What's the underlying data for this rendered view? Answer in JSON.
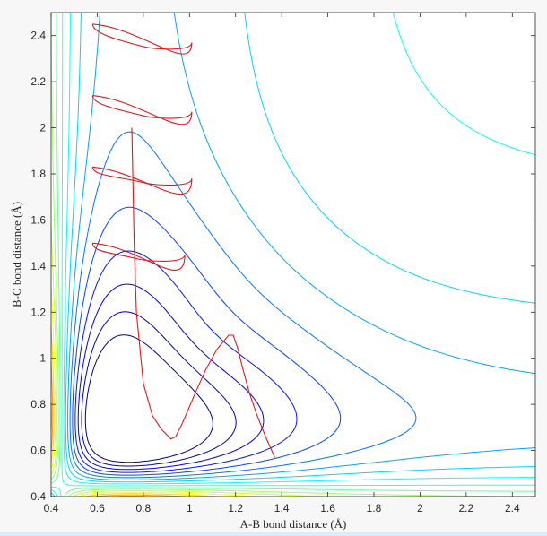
{
  "chart_data": {
    "type": "contour",
    "title": "",
    "xlabel": "A-B bond distance (Å)",
    "ylabel": "B-C bond distance (Å)",
    "xlim": [
      0.4,
      2.5
    ],
    "ylim": [
      0.4,
      2.5
    ],
    "x_ticks": [
      "0.4",
      "0.6",
      "0.8",
      "1",
      "1.2",
      "1.4",
      "1.6",
      "1.8",
      "2",
      "2.2",
      "2.4"
    ],
    "y_ticks": [
      "0.4",
      "0.6",
      "0.8",
      "1",
      "1.2",
      "1.4",
      "1.6",
      "1.8",
      "2",
      "2.2",
      "2.4"
    ],
    "grid": false,
    "legend": "none",
    "colormap": "jet",
    "contour_levels": 22,
    "trajectory": {
      "color": "#e8151b",
      "points": [
        [
          1.37,
          0.57
        ],
        [
          1.33,
          0.66
        ],
        [
          1.29,
          0.76
        ],
        [
          1.26,
          0.85
        ],
        [
          1.23,
          0.96
        ],
        [
          1.21,
          1.04
        ],
        [
          1.19,
          1.1
        ],
        [
          1.17,
          1.1
        ],
        [
          1.12,
          1.04
        ],
        [
          1.07,
          0.95
        ],
        [
          1.03,
          0.86
        ],
        [
          1.0,
          0.79
        ],
        [
          0.97,
          0.72
        ],
        [
          0.94,
          0.66
        ],
        [
          0.92,
          0.65
        ],
        [
          0.88,
          0.69
        ],
        [
          0.84,
          0.75
        ],
        [
          0.8,
          0.89
        ],
        [
          0.77,
          1.2
        ],
        [
          0.76,
          1.5
        ],
        [
          0.75,
          2.0
        ]
      ]
    },
    "trajectory_loops": [
      {
        "y_low": 1.43,
        "y_high": 1.5,
        "x_right": 0.98
      },
      {
        "y_low": 1.76,
        "y_high": 1.83,
        "x_right": 1.01
      },
      {
        "y_low": 2.05,
        "y_high": 2.14,
        "x_right": 1.01
      },
      {
        "y_low": 2.35,
        "y_high": 2.45,
        "x_right": 1.01
      }
    ],
    "colors": {
      "axes_bg": "#ffffff",
      "figure_bg": "#f7f7f7",
      "axis": "#262626"
    }
  }
}
